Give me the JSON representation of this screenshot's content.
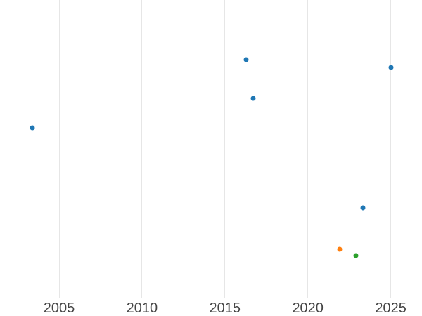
{
  "chart_data": {
    "type": "scatter",
    "title": "",
    "xlabel": "",
    "ylabel": "",
    "x_tick_labels": [
      "2005",
      "2010",
      "2015",
      "2020",
      "2025"
    ],
    "x_tick_values": [
      2005,
      2010,
      2015,
      2020,
      2025
    ],
    "x_domain_visible": [
      2001.4,
      2026.9
    ],
    "y_axis_labels_visible": false,
    "y_note": "y-axis tick labels are cropped out of the image; y values are estimated in gridline units measured upward from the lowest visible horizontal gridline (5 unlabeled gridlines visible)",
    "y_gridlines_units": [
      0,
      1,
      2,
      3,
      4
    ],
    "grid": true,
    "legend": false,
    "series": [
      {
        "name": "blue-series",
        "color": "#1f77b4",
        "points": [
          {
            "x": 2003.4,
            "y": 2.32
          },
          {
            "x": 2016.3,
            "y": 3.64
          },
          {
            "x": 2016.7,
            "y": 2.89
          },
          {
            "x": 2023.3,
            "y": 0.78
          },
          {
            "x": 2025.0,
            "y": 3.49
          }
        ]
      },
      {
        "name": "orange-series",
        "color": "#ff7f0e",
        "points": [
          {
            "x": 2021.9,
            "y": -0.02
          }
        ]
      },
      {
        "name": "green-series",
        "color": "#2ca02c",
        "points": [
          {
            "x": 2022.9,
            "y": -0.14
          }
        ]
      }
    ],
    "colors": {
      "background": "#ffffff",
      "grid_color": "#e6e6e6",
      "tick_label_color": "#444444"
    }
  }
}
